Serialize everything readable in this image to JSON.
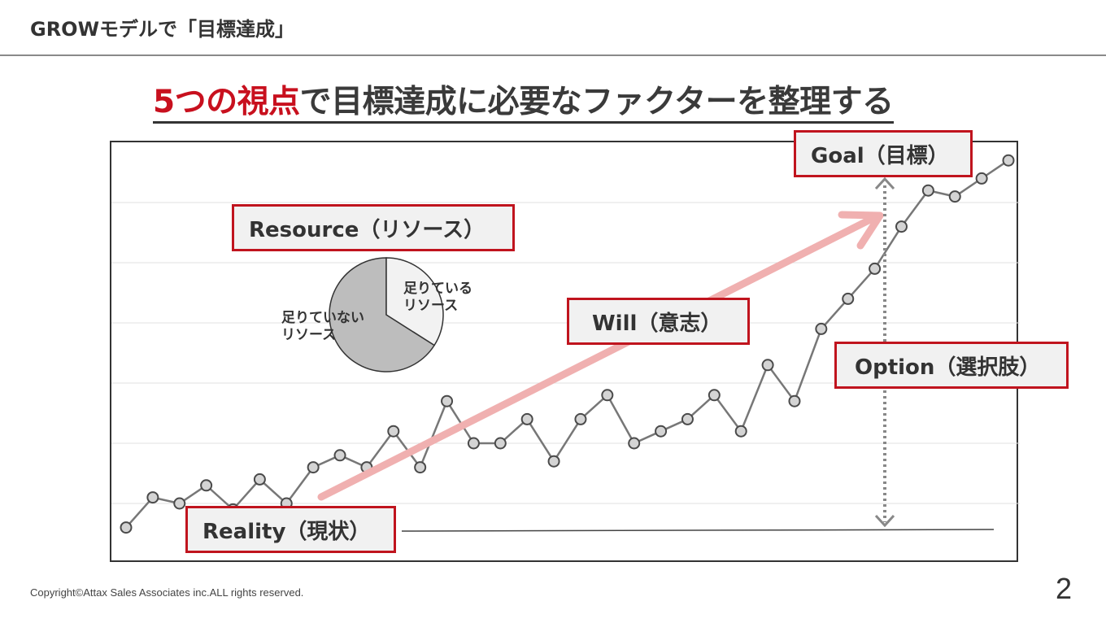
{
  "header": {
    "title": "GROWモデルで「目標達成」"
  },
  "headline": {
    "accent": "5つの視点",
    "rest": "で目標達成に必要なファクターを整理する"
  },
  "labels": {
    "goal": "Goal（目標）",
    "resource": "Resource（リソース）",
    "will": "Will（意志）",
    "option": "Option（選択肢）",
    "reality": "Reality（現状）"
  },
  "pie": {
    "insufficient_line1": "足りていない",
    "insufficient_line2": "リソース",
    "sufficient_line1": "足りている",
    "sufficient_line2": "リソース",
    "sufficient_fraction": 0.34
  },
  "footer": {
    "copyright": "Copyright©Attax Sales Associates inc.ALL rights reserved.",
    "page_number": "2"
  },
  "colors": {
    "accent_red": "#c8101e",
    "box_border": "#c0141e",
    "arrow_pink": "#f0b0b0",
    "line_gray": "#777777",
    "pie_dark": "#bdbdbd",
    "pie_light": "#f2f2f2"
  },
  "chart_data": {
    "type": "line",
    "grid": true,
    "ylim": [
      0,
      7
    ],
    "y": [
      0.6,
      1.1,
      1.0,
      1.3,
      0.9,
      1.4,
      1.0,
      1.6,
      1.8,
      1.6,
      2.2,
      1.6,
      2.7,
      2.0,
      2.0,
      2.4,
      1.7,
      2.4,
      2.8,
      2.0,
      2.2,
      2.4,
      2.8,
      2.2,
      3.3,
      2.7,
      3.9,
      4.4,
      4.9,
      5.6,
      6.2,
      6.1,
      6.4,
      6.7
    ]
  }
}
